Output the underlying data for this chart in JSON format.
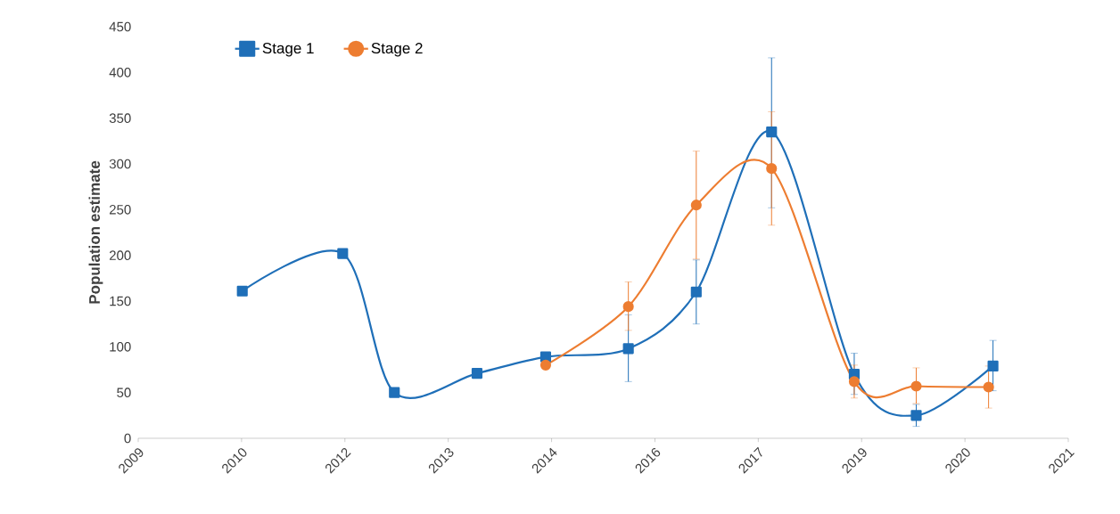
{
  "chart_data": {
    "type": "line",
    "ylabel": "Population estimate",
    "xlim": [
      2008.8,
      2021.4
    ],
    "xticks": [
      {
        "value": 2008.8,
        "label": "2009"
      },
      {
        "value": 2010.2,
        "label": "2010"
      },
      {
        "value": 2011.6,
        "label": "2012"
      },
      {
        "value": 2013.0,
        "label": "2013"
      },
      {
        "value": 2014.4,
        "label": "2014"
      },
      {
        "value": 2015.8,
        "label": "2016"
      },
      {
        "value": 2017.2,
        "label": "2017"
      },
      {
        "value": 2018.6,
        "label": "2019"
      },
      {
        "value": 2020.0,
        "label": "2020"
      },
      {
        "value": 2021.4,
        "label": "2021"
      }
    ],
    "ylim": [
      0,
      450
    ],
    "yticks": [
      0,
      50,
      100,
      150,
      200,
      250,
      300,
      350,
      400,
      450
    ],
    "grid": false,
    "legend": "top left",
    "series": [
      {
        "name": "Stage 1",
        "color": "#1f6fb8",
        "marker": "square",
        "x": [
          2010.21,
          2011.57,
          2012.27,
          2013.39,
          2014.32,
          2015.44,
          2016.36,
          2017.38,
          2018.5,
          2019.34,
          2020.38
        ],
        "values": [
          161,
          202,
          50,
          71,
          89,
          98,
          160,
          335,
          70,
          25,
          79
        ],
        "errors": [
          null,
          null,
          null,
          null,
          null,
          [
            62,
            135
          ],
          [
            125,
            195
          ],
          [
            252,
            416
          ],
          [
            48,
            93
          ],
          [
            13,
            37
          ],
          [
            52,
            107
          ]
        ]
      },
      {
        "name": "Stage 2",
        "color": "#ed7d31",
        "marker": "circle",
        "x": [
          2014.32,
          2015.44,
          2016.36,
          2017.38,
          2018.5,
          2019.34,
          2020.32
        ],
        "values": [
          80,
          144,
          255,
          295,
          62,
          57,
          56
        ],
        "errors": [
          null,
          [
            118,
            171
          ],
          [
            196,
            314
          ],
          [
            233,
            357
          ],
          [
            44,
            80
          ],
          [
            38,
            77
          ],
          [
            33,
            79
          ]
        ]
      }
    ]
  }
}
